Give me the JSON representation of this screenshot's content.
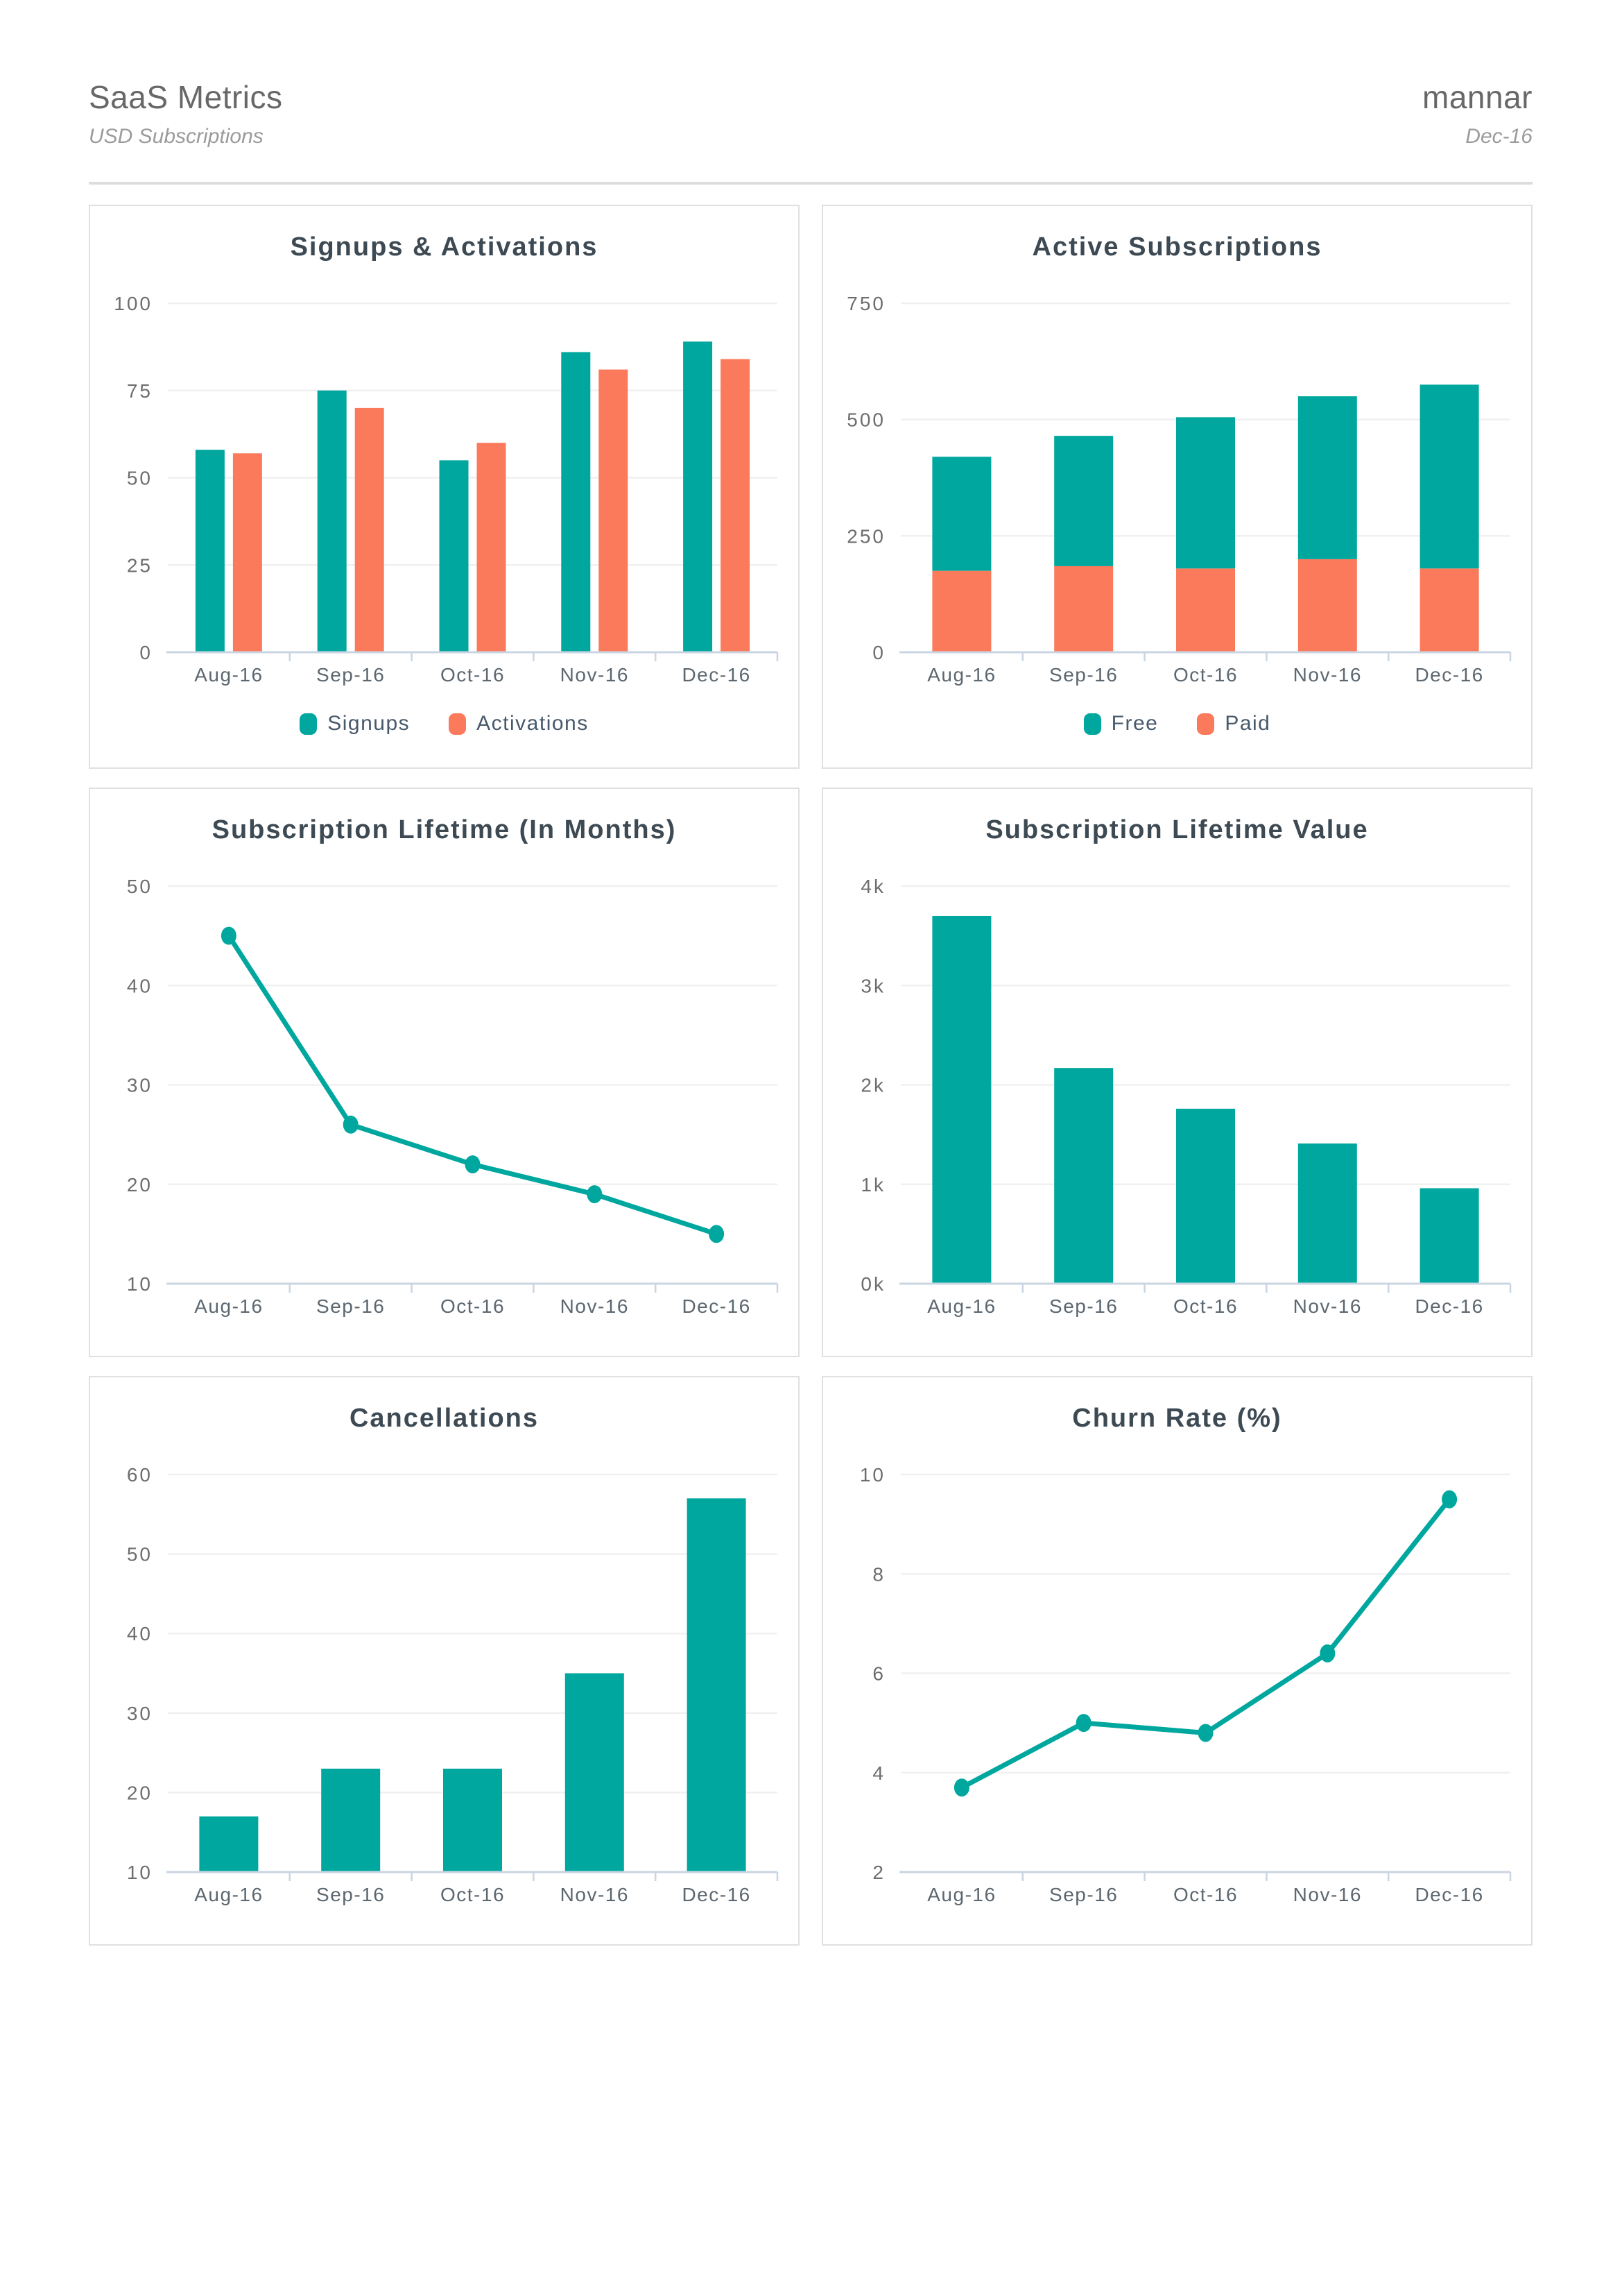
{
  "header": {
    "title": "SaaS Metrics",
    "brand": "mannar",
    "subtitle_left": "USD Subscriptions",
    "subtitle_right": "Dec-16"
  },
  "palette": {
    "teal": "#00A79E",
    "orange": "#FB7A5B",
    "grid": "#F0F0F0",
    "axis": "#C9D5E2",
    "title_text": "#3D4A53",
    "legend_text": "#47596B"
  },
  "chart_data": [
    {
      "type": "bar",
      "variant": "grouped",
      "title": "Signups & Activations",
      "categories": [
        "Aug-16",
        "Sep-16",
        "Oct-16",
        "Nov-16",
        "Dec-16"
      ],
      "series": [
        {
          "name": "Signups",
          "color": "#00A79E",
          "values": [
            58,
            75,
            55,
            86,
            89
          ]
        },
        {
          "name": "Activations",
          "color": "#FB7A5B",
          "values": [
            57,
            70,
            60,
            81,
            84
          ]
        }
      ],
      "ylim": [
        0,
        100
      ],
      "yticks": {
        "values": [
          0,
          25,
          50,
          75,
          100
        ],
        "labels": [
          "0",
          "25",
          "50",
          "75",
          "100"
        ]
      },
      "grid": true,
      "legend": true,
      "legend_position": "bottom"
    },
    {
      "type": "bar",
      "variant": "stacked",
      "title": "Active Subscriptions",
      "categories": [
        "Aug-16",
        "Sep-16",
        "Oct-16",
        "Nov-16",
        "Dec-16"
      ],
      "series": [
        {
          "name": "Free",
          "color": "#00A79E",
          "values": [
            245,
            280,
            325,
            350,
            395
          ]
        },
        {
          "name": "Paid",
          "color": "#FB7A5B",
          "values": [
            175,
            185,
            180,
            200,
            180
          ]
        }
      ],
      "stack_order": [
        "Paid",
        "Free"
      ],
      "ylim": [
        0,
        750
      ],
      "yticks": {
        "values": [
          0,
          250,
          500,
          750
        ],
        "labels": [
          "0",
          "250",
          "500",
          "750"
        ]
      },
      "grid": true,
      "legend": true,
      "legend_position": "bottom"
    },
    {
      "type": "line",
      "variant": "line",
      "title": "Subscription Lifetime (In Months)",
      "categories": [
        "Aug-16",
        "Sep-16",
        "Oct-16",
        "Nov-16",
        "Dec-16"
      ],
      "series": [
        {
          "name": "Subscription Lifetime",
          "color": "#00A79E",
          "values": [
            45,
            26,
            22,
            19,
            15
          ]
        }
      ],
      "ylim": [
        10,
        50
      ],
      "yticks": {
        "values": [
          10,
          20,
          30,
          40,
          50
        ],
        "labels": [
          "10",
          "20",
          "30",
          "40",
          "50"
        ]
      },
      "grid": true,
      "legend": false
    },
    {
      "type": "bar",
      "variant": "single",
      "title": "Subscription Lifetime Value",
      "categories": [
        "Aug-16",
        "Sep-16",
        "Oct-16",
        "Nov-16",
        "Dec-16"
      ],
      "series": [
        {
          "name": "Lifetime Value",
          "color": "#00A79E",
          "values": [
            3700,
            2170,
            1760,
            1410,
            960
          ]
        }
      ],
      "ylim": [
        0,
        4000
      ],
      "yticks": {
        "values": [
          0,
          1000,
          2000,
          3000,
          4000
        ],
        "labels": [
          "0k",
          "1k",
          "2k",
          "3k",
          "4k"
        ]
      },
      "grid": true,
      "legend": false
    },
    {
      "type": "bar",
      "variant": "single",
      "title": "Cancellations",
      "categories": [
        "Aug-16",
        "Sep-16",
        "Oct-16",
        "Nov-16",
        "Dec-16"
      ],
      "series": [
        {
          "name": "Cancellations",
          "color": "#00A79E",
          "values": [
            17,
            23,
            23,
            35,
            57
          ]
        }
      ],
      "ylim": [
        10,
        60
      ],
      "yticks": {
        "values": [
          10,
          20,
          30,
          40,
          50,
          60
        ],
        "labels": [
          "10",
          "20",
          "30",
          "40",
          "50",
          "60"
        ]
      },
      "grid": true,
      "legend": false
    },
    {
      "type": "line",
      "variant": "line",
      "title": "Churn Rate (%)",
      "categories": [
        "Aug-16",
        "Sep-16",
        "Oct-16",
        "Nov-16",
        "Dec-16"
      ],
      "series": [
        {
          "name": "Churn Rate",
          "color": "#00A79E",
          "values": [
            3.7,
            5.0,
            4.8,
            6.4,
            9.5
          ]
        }
      ],
      "ylim": [
        2,
        10
      ],
      "yticks": {
        "values": [
          2,
          4,
          6,
          8,
          10
        ],
        "labels": [
          "2",
          "4",
          "6",
          "8",
          "10"
        ]
      },
      "grid": true,
      "legend": false
    }
  ]
}
